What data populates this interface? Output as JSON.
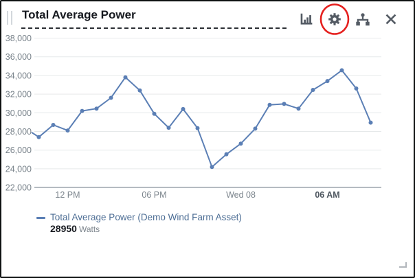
{
  "header": {
    "title": "Total Average Power",
    "actions": [
      {
        "label": "Change visualization",
        "icon": "bar-chart-icon"
      },
      {
        "label": "Settings",
        "icon": "gear-icon",
        "annotated": true
      },
      {
        "label": "Asset hierarchy",
        "icon": "hierarchy-icon"
      },
      {
        "label": "Close",
        "icon": "close-icon"
      }
    ]
  },
  "annotation": {
    "shape": "ellipse",
    "color": "#e5201e",
    "target": "settings-button"
  },
  "chart_data": {
    "type": "line",
    "title": "Total Average Power",
    "series": [
      {
        "name": "Total Average Power (Demo Wind Farm Asset)",
        "unit": "Watts",
        "latest_value": "28950",
        "color": "#5b7fb5",
        "values": [
          27400,
          28700,
          28100,
          30200,
          30450,
          31600,
          33800,
          32400,
          29900,
          28400,
          30400,
          28350,
          24200,
          25550,
          26700,
          28300,
          30850,
          30950,
          30450,
          32450,
          33400,
          34550,
          32600,
          28950
        ]
      }
    ],
    "lead_value": 27900,
    "ylim": [
      22000,
      38000
    ],
    "y_ticks": [
      {
        "value": 38000,
        "label": "38,000"
      },
      {
        "value": 36000,
        "label": "36,000"
      },
      {
        "value": 34000,
        "label": "34,000"
      },
      {
        "value": 32000,
        "label": "32,000"
      },
      {
        "value": 30000,
        "label": "30,000"
      },
      {
        "value": 28000,
        "label": "28,000"
      },
      {
        "value": 26000,
        "label": "26,000"
      },
      {
        "value": 24000,
        "label": "24,000"
      },
      {
        "value": 22000,
        "label": "22,000"
      }
    ],
    "x_ticks": [
      {
        "index": 2,
        "label": "12 PM"
      },
      {
        "index": 8,
        "label": "06 PM"
      },
      {
        "index": 14,
        "label": "Wed 08"
      },
      {
        "index": 20,
        "label": "06 AM",
        "bold": true
      }
    ],
    "grid": "horizontal",
    "legend_position": "bottom"
  },
  "colors": {
    "line": "#5b7fb5",
    "annotation_red": "#e5201e",
    "icon": "#545b64"
  }
}
